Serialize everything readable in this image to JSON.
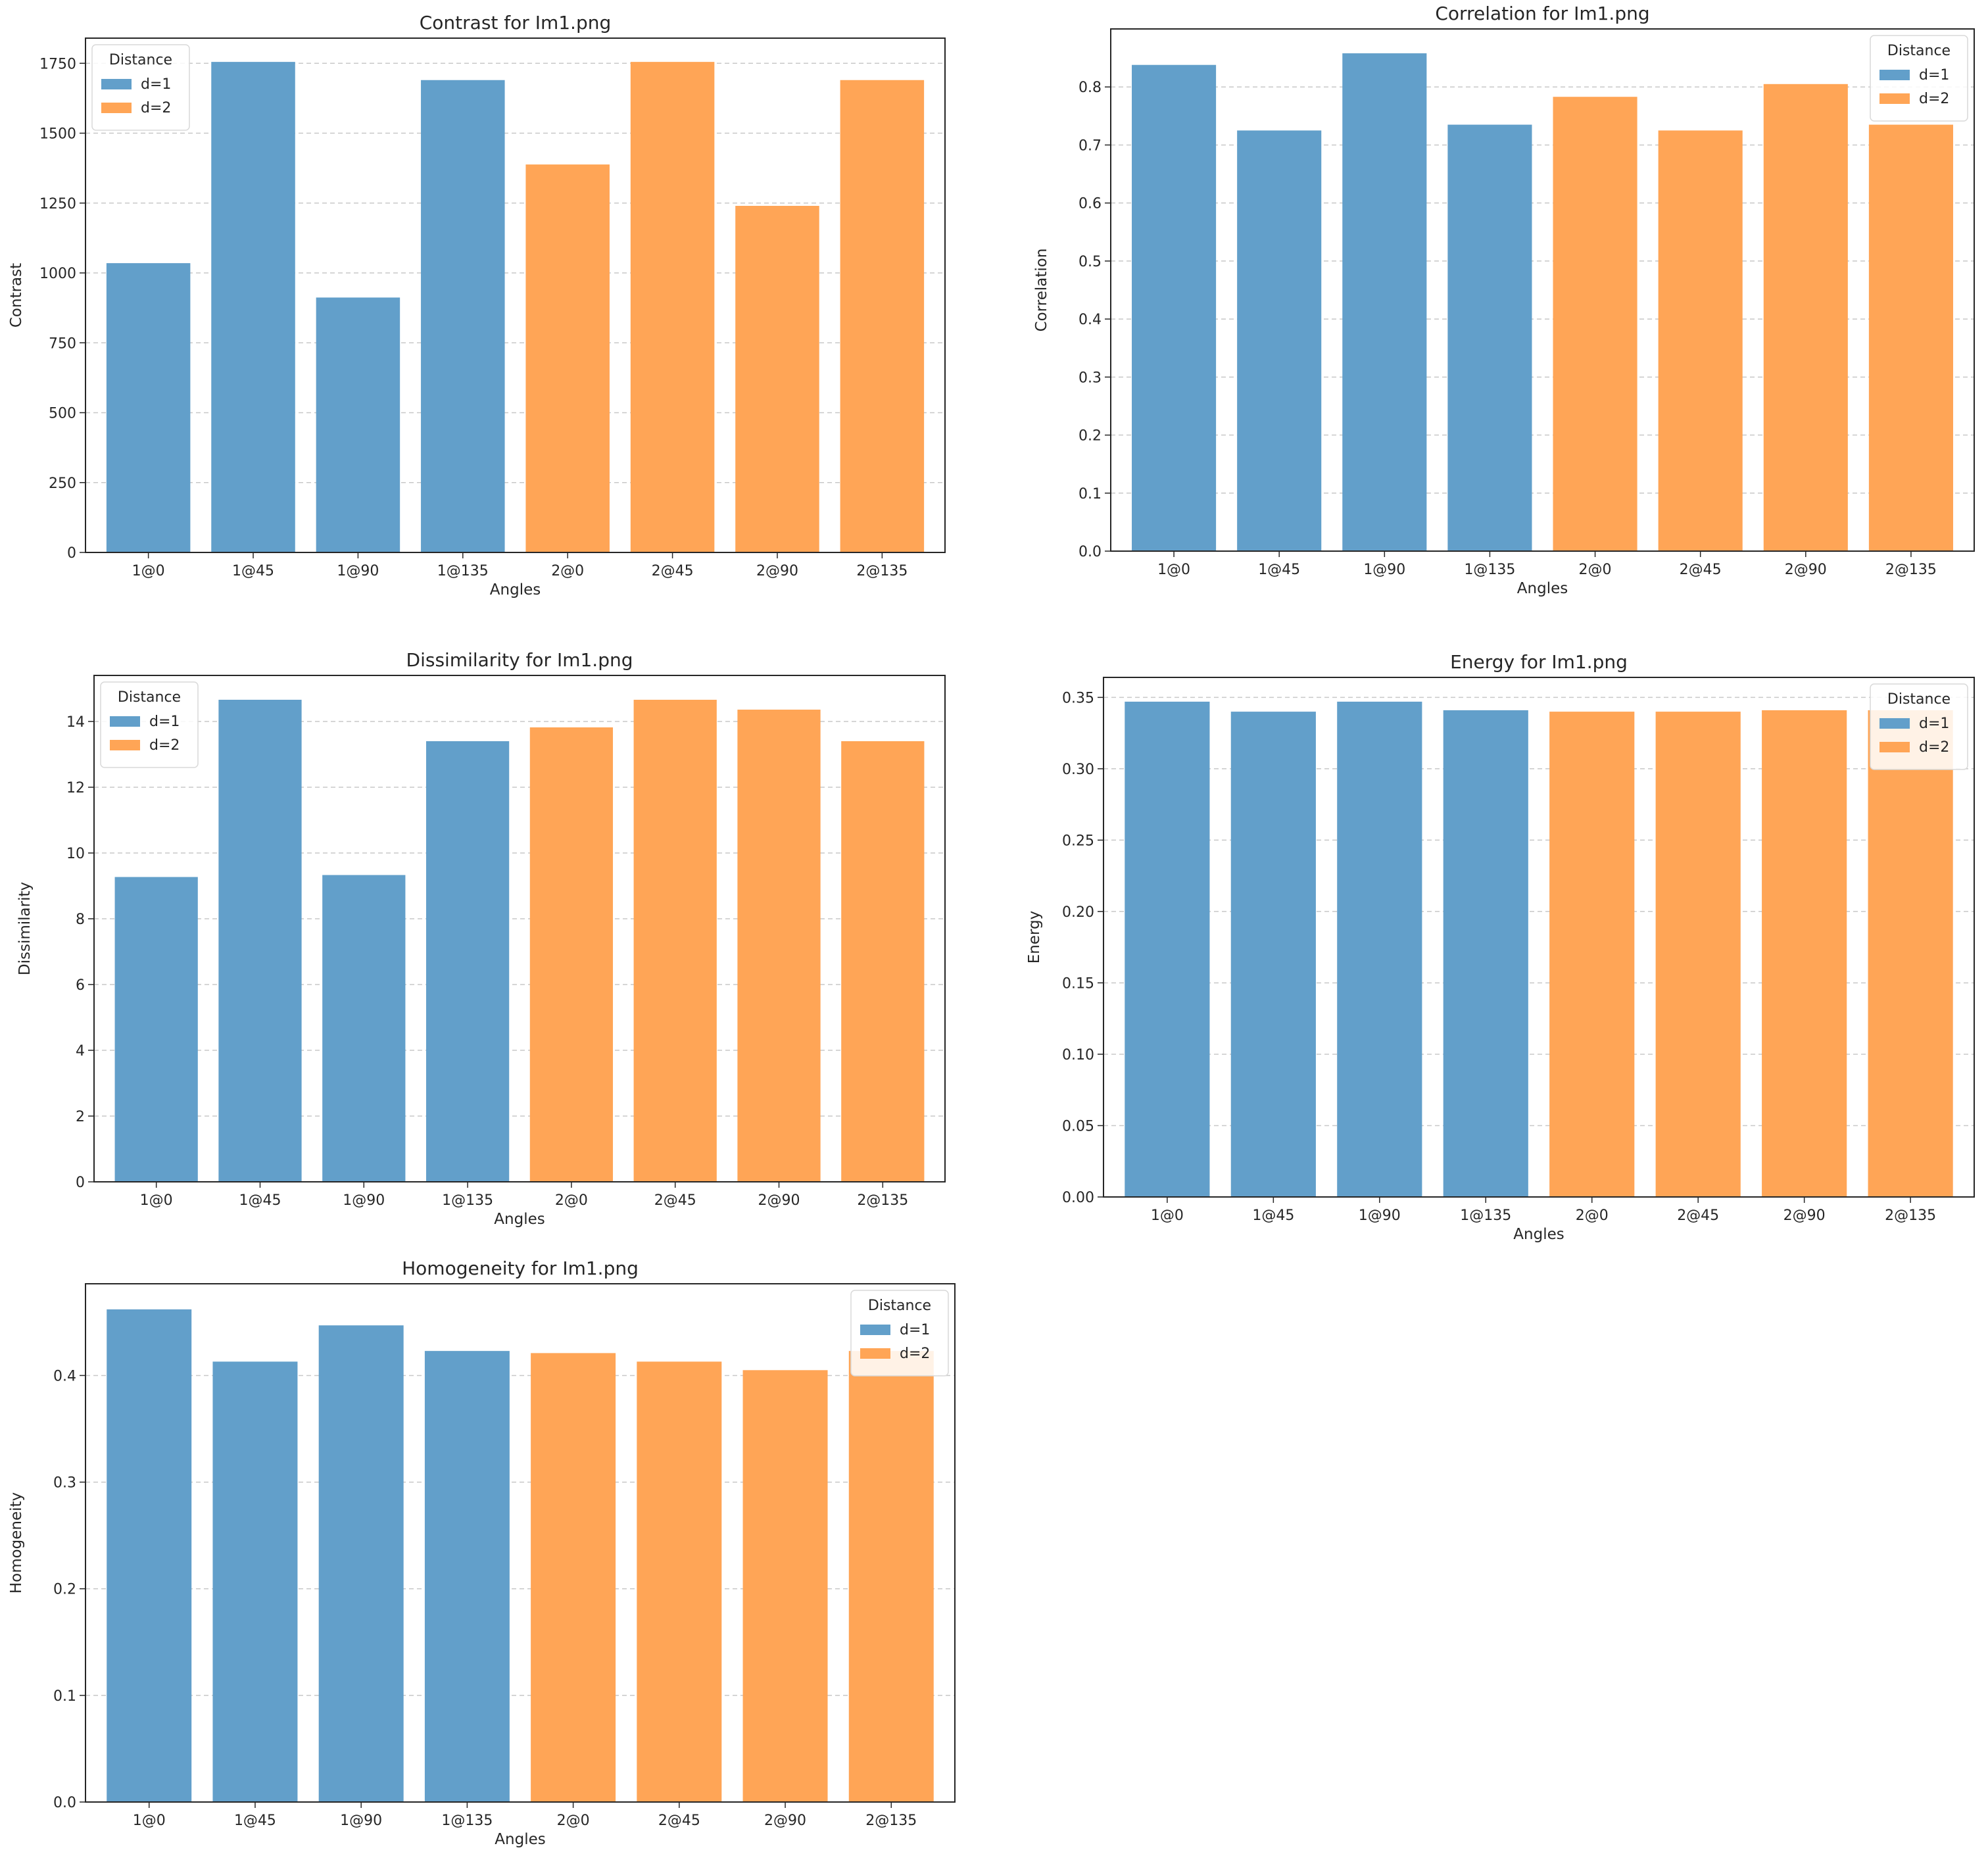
{
  "figure": {
    "background": "#ffffff"
  },
  "chart_data": [
    {
      "id": "contrast",
      "type": "bar",
      "title": "Contrast for Im1.png",
      "xlabel": "Angles",
      "ylabel": "Contrast",
      "categories": [
        "1@0",
        "1@45",
        "1@90",
        "1@135",
        "2@0",
        "2@45",
        "2@90",
        "2@135"
      ],
      "values": [
        1035,
        1755,
        912,
        1690,
        1388,
        1755,
        1240,
        1690
      ],
      "series_index": [
        0,
        0,
        0,
        0,
        1,
        1,
        1,
        1
      ],
      "ylim": [
        0,
        1840
      ],
      "yticks": [
        0,
        250,
        500,
        750,
        1000,
        1250,
        1500,
        1750
      ],
      "ytick_labels": [
        "0",
        "250",
        "500",
        "750",
        "1000",
        "1250",
        "1500",
        "1750"
      ],
      "grid": "y-dashed",
      "legend": {
        "title": "Distance",
        "position": "top-left",
        "entries": [
          "d=1",
          "d=2"
        ]
      }
    },
    {
      "id": "correlation",
      "type": "bar",
      "title": "Correlation for Im1.png",
      "xlabel": "Angles",
      "ylabel": "Correlation",
      "categories": [
        "1@0",
        "1@45",
        "1@90",
        "1@135",
        "2@0",
        "2@45",
        "2@90",
        "2@135"
      ],
      "values": [
        0.838,
        0.725,
        0.858,
        0.735,
        0.783,
        0.725,
        0.805,
        0.735
      ],
      "series_index": [
        0,
        0,
        0,
        0,
        1,
        1,
        1,
        1
      ],
      "ylim": [
        0,
        0.9
      ],
      "yticks": [
        0,
        0.1,
        0.2,
        0.3,
        0.4,
        0.5,
        0.6,
        0.7,
        0.8
      ],
      "ytick_labels": [
        "0.0",
        "0.1",
        "0.2",
        "0.3",
        "0.4",
        "0.5",
        "0.6",
        "0.7",
        "0.8"
      ],
      "grid": "y-dashed",
      "legend": {
        "title": "Distance",
        "position": "top-right",
        "entries": [
          "d=1",
          "d=2"
        ]
      }
    },
    {
      "id": "dissimilarity",
      "type": "bar",
      "title": "Dissimilarity for Im1.png",
      "xlabel": "Angles",
      "ylabel": "Dissimilarity",
      "categories": [
        "1@0",
        "1@45",
        "1@90",
        "1@135",
        "2@0",
        "2@45",
        "2@90",
        "2@135"
      ],
      "values": [
        9.27,
        14.66,
        9.33,
        13.4,
        13.82,
        14.66,
        14.36,
        13.4
      ],
      "series_index": [
        0,
        0,
        0,
        0,
        1,
        1,
        1,
        1
      ],
      "ylim": [
        0,
        15.4
      ],
      "yticks": [
        0,
        2,
        4,
        6,
        8,
        10,
        12,
        14
      ],
      "ytick_labels": [
        "0",
        "2",
        "4",
        "6",
        "8",
        "10",
        "12",
        "14"
      ],
      "grid": "y-dashed",
      "legend": {
        "title": "Distance",
        "position": "top-left",
        "entries": [
          "d=1",
          "d=2"
        ]
      }
    },
    {
      "id": "energy",
      "type": "bar",
      "title": "Energy for Im1.png",
      "xlabel": "Angles",
      "ylabel": "Energy",
      "categories": [
        "1@0",
        "1@45",
        "1@90",
        "1@135",
        "2@0",
        "2@45",
        "2@90",
        "2@135"
      ],
      "values": [
        0.347,
        0.34,
        0.347,
        0.341,
        0.34,
        0.34,
        0.341,
        0.341
      ],
      "series_index": [
        0,
        0,
        0,
        0,
        1,
        1,
        1,
        1
      ],
      "ylim": [
        0,
        0.364
      ],
      "yticks": [
        0,
        0.05,
        0.1,
        0.15,
        0.2,
        0.25,
        0.3,
        0.35
      ],
      "ytick_labels": [
        "0.00",
        "0.05",
        "0.10",
        "0.15",
        "0.20",
        "0.25",
        "0.30",
        "0.35"
      ],
      "grid": "y-dashed",
      "legend": {
        "title": "Distance",
        "position": "top-right",
        "entries": [
          "d=1",
          "d=2"
        ]
      }
    },
    {
      "id": "homogeneity",
      "type": "bar",
      "title": "Homogeneity for Im1.png",
      "xlabel": "Angles",
      "ylabel": "Homogeneity",
      "categories": [
        "1@0",
        "1@45",
        "1@90",
        "1@135",
        "2@0",
        "2@45",
        "2@90",
        "2@135"
      ],
      "values": [
        0.462,
        0.413,
        0.447,
        0.423,
        0.421,
        0.413,
        0.405,
        0.423
      ],
      "series_index": [
        0,
        0,
        0,
        0,
        1,
        1,
        1,
        1
      ],
      "ylim": [
        0,
        0.486
      ],
      "yticks": [
        0,
        0.1,
        0.2,
        0.3,
        0.4
      ],
      "ytick_labels": [
        "0.0",
        "0.1",
        "0.2",
        "0.3",
        "0.4"
      ],
      "grid": "y-dashed",
      "legend": {
        "title": "Distance",
        "position": "top-right",
        "entries": [
          "d=1",
          "d=2"
        ]
      }
    }
  ],
  "colors": {
    "series": [
      "#629fca",
      "#ffa556"
    ],
    "grid": "#c8c8c8",
    "axis": "#262626",
    "legend_border": "#d9d9d9"
  }
}
